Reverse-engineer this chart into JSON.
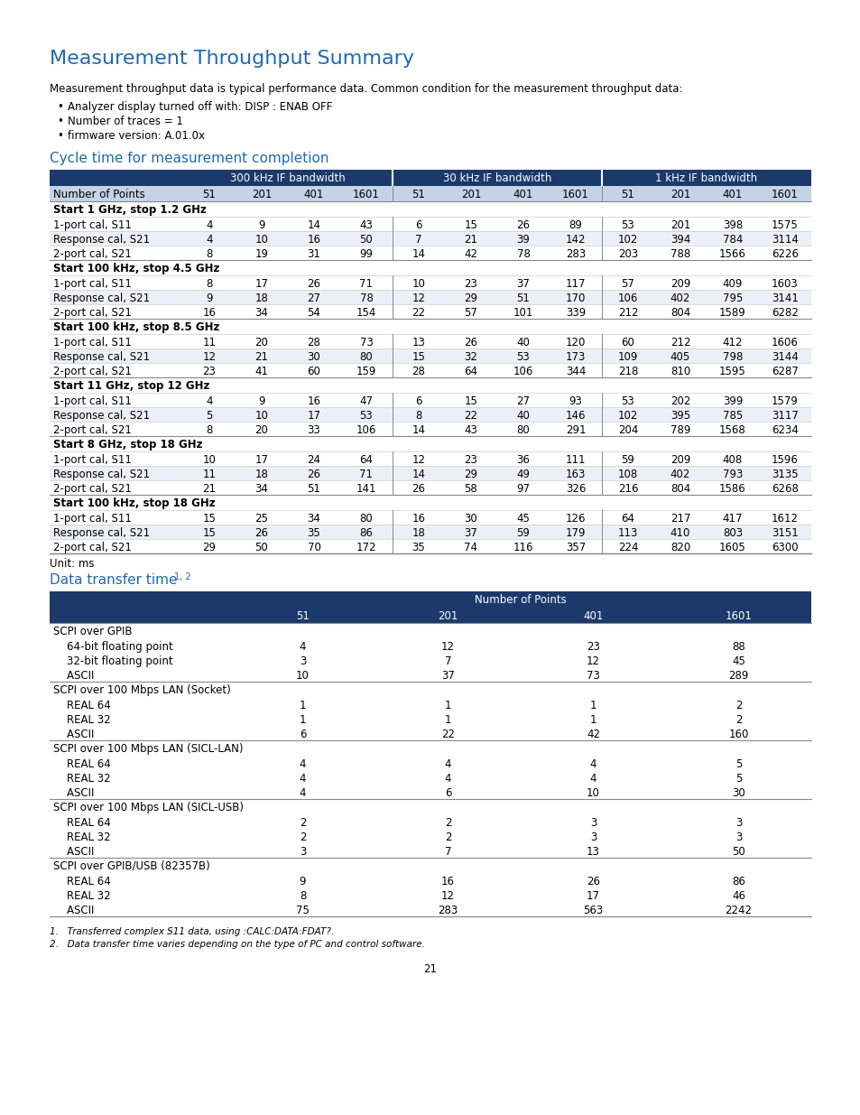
{
  "title": "Measurement Throughput Summary",
  "title_color": "#1F6AB0",
  "intro_text": "Measurement throughput data is typical performance data. Common condition for the measurement throughput data:",
  "bullets": [
    "Analyzer display turned off with: DISP : ENAB OFF",
    "Number of traces = 1",
    "firmware version: A.01.0x"
  ],
  "section1_title": "Cycle time for measurement completion",
  "section1_color": "#1F6AB0",
  "header_bg": "#1B3A6B",
  "header_text_color": "#FFFFFF",
  "subheader_bg": "#C5D3E8",
  "subheader_text_color": "#000000",
  "table1_subheader": [
    "Number of Points",
    "51",
    "201",
    "401",
    "1601",
    "51",
    "201",
    "401",
    "1601",
    "51",
    "201",
    "401",
    "1601"
  ],
  "table1_sections": [
    {
      "section_label": "Start 1 GHz, stop 1.2 GHz",
      "rows": [
        [
          "1-port cal, S11",
          "4",
          "9",
          "14",
          "43",
          "6",
          "15",
          "26",
          "89",
          "53",
          "201",
          "398",
          "1575"
        ],
        [
          "Response cal, S21",
          "4",
          "10",
          "16",
          "50",
          "7",
          "21",
          "39",
          "142",
          "102",
          "394",
          "784",
          "3114"
        ],
        [
          "2-port cal, S21",
          "8",
          "19",
          "31",
          "99",
          "14",
          "42",
          "78",
          "283",
          "203",
          "788",
          "1566",
          "6226"
        ]
      ]
    },
    {
      "section_label": "Start 100 kHz, stop 4.5 GHz",
      "rows": [
        [
          "1-port cal, S11",
          "8",
          "17",
          "26",
          "71",
          "10",
          "23",
          "37",
          "117",
          "57",
          "209",
          "409",
          "1603"
        ],
        [
          "Response cal, S21",
          "9",
          "18",
          "27",
          "78",
          "12",
          "29",
          "51",
          "170",
          "106",
          "402",
          "795",
          "3141"
        ],
        [
          "2-port cal, S21",
          "16",
          "34",
          "54",
          "154",
          "22",
          "57",
          "101",
          "339",
          "212",
          "804",
          "1589",
          "6282"
        ]
      ]
    },
    {
      "section_label": "Start 100 kHz, stop 8.5 GHz",
      "rows": [
        [
          "1-port cal, S11",
          "11",
          "20",
          "28",
          "73",
          "13",
          "26",
          "40",
          "120",
          "60",
          "212",
          "412",
          "1606"
        ],
        [
          "Response cal, S21",
          "12",
          "21",
          "30",
          "80",
          "15",
          "32",
          "53",
          "173",
          "109",
          "405",
          "798",
          "3144"
        ],
        [
          "2-port cal, S21",
          "23",
          "41",
          "60",
          "159",
          "28",
          "64",
          "106",
          "344",
          "218",
          "810",
          "1595",
          "6287"
        ]
      ]
    },
    {
      "section_label": "Start 11 GHz, stop 12 GHz",
      "rows": [
        [
          "1-port cal, S11",
          "4",
          "9",
          "16",
          "47",
          "6",
          "15",
          "27",
          "93",
          "53",
          "202",
          "399",
          "1579"
        ],
        [
          "Response cal, S21",
          "5",
          "10",
          "17",
          "53",
          "8",
          "22",
          "40",
          "146",
          "102",
          "395",
          "785",
          "3117"
        ],
        [
          "2-port cal, S21",
          "8",
          "20",
          "33",
          "106",
          "14",
          "43",
          "80",
          "291",
          "204",
          "789",
          "1568",
          "6234"
        ]
      ]
    },
    {
      "section_label": "Start 8 GHz, stop 18 GHz",
      "rows": [
        [
          "1-port cal, S11",
          "10",
          "17",
          "24",
          "64",
          "12",
          "23",
          "36",
          "111",
          "59",
          "209",
          "408",
          "1596"
        ],
        [
          "Response cal, S21",
          "11",
          "18",
          "26",
          "71",
          "14",
          "29",
          "49",
          "163",
          "108",
          "402",
          "793",
          "3135"
        ],
        [
          "2-port cal, S21",
          "21",
          "34",
          "51",
          "141",
          "26",
          "58",
          "97",
          "326",
          "216",
          "804",
          "1586",
          "6268"
        ]
      ]
    },
    {
      "section_label": "Start 100 kHz, stop 18 GHz",
      "rows": [
        [
          "1-port cal, S11",
          "15",
          "25",
          "34",
          "80",
          "16",
          "30",
          "45",
          "126",
          "64",
          "217",
          "417",
          "1612"
        ],
        [
          "Response cal, S21",
          "15",
          "26",
          "35",
          "86",
          "18",
          "37",
          "59",
          "179",
          "113",
          "410",
          "803",
          "3151"
        ],
        [
          "2-port cal, S21",
          "29",
          "50",
          "70",
          "172",
          "35",
          "74",
          "116",
          "357",
          "224",
          "820",
          "1605",
          "6300"
        ]
      ]
    }
  ],
  "unit_text": "Unit: ms",
  "section2_title": "Data transfer time",
  "section2_superscript": "1, 2",
  "section2_color": "#1F6AB0",
  "table2_subheader": [
    "",
    "51",
    "201",
    "401",
    "1601"
  ],
  "table2_sections": [
    {
      "section_label": "SCPI over GPIB",
      "rows": [
        [
          "    64-bit floating point",
          "4",
          "12",
          "23",
          "88"
        ],
        [
          "    32-bit floating point",
          "3",
          "7",
          "12",
          "45"
        ],
        [
          "    ASCII",
          "10",
          "37",
          "73",
          "289"
        ]
      ]
    },
    {
      "section_label": "SCPI over 100 Mbps LAN (Socket)",
      "rows": [
        [
          "    REAL 64",
          "1",
          "1",
          "1",
          "2"
        ],
        [
          "    REAL 32",
          "1",
          "1",
          "1",
          "2"
        ],
        [
          "    ASCII",
          "6",
          "22",
          "42",
          "160"
        ]
      ]
    },
    {
      "section_label": "SCPI over 100 Mbps LAN (SICL-LAN)",
      "rows": [
        [
          "    REAL 64",
          "4",
          "4",
          "4",
          "5"
        ],
        [
          "    REAL 32",
          "4",
          "4",
          "4",
          "5"
        ],
        [
          "    ASCII",
          "4",
          "6",
          "10",
          "30"
        ]
      ]
    },
    {
      "section_label": "SCPI over 100 Mbps LAN (SICL-USB)",
      "rows": [
        [
          "    REAL 64",
          "2",
          "2",
          "3",
          "3"
        ],
        [
          "    REAL 32",
          "2",
          "2",
          "3",
          "3"
        ],
        [
          "    ASCII",
          "3",
          "7",
          "13",
          "50"
        ]
      ]
    },
    {
      "section_label": "SCPI over GPIB/USB (82357B)",
      "rows": [
        [
          "    REAL 64",
          "9",
          "16",
          "26",
          "86"
        ],
        [
          "    REAL 32",
          "8",
          "12",
          "17",
          "46"
        ],
        [
          "    ASCII",
          "75",
          "283",
          "563",
          "2242"
        ]
      ]
    }
  ],
  "footnotes": [
    "1.   Transferred complex S11 data, using :CALC:DATA:FDAT?.",
    "2.   Data transfer time varies depending on the type of PC and control software."
  ],
  "page_number": "21",
  "bg_color": "#FFFFFF"
}
